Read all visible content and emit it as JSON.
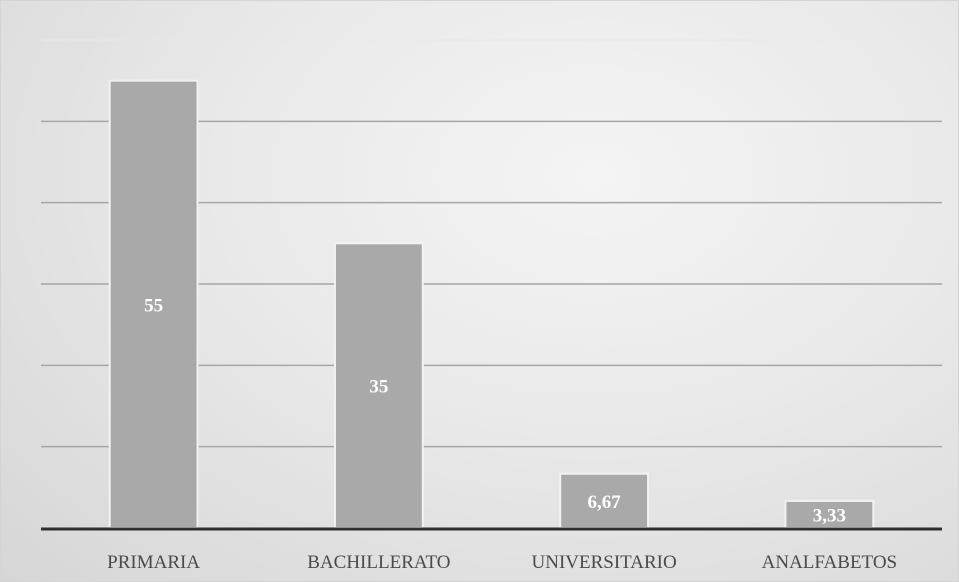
{
  "chart_data": {
    "type": "bar",
    "categories": [
      "PRIMARIA",
      "BACHILLERATO",
      "UNIVERSITARIO",
      "ANALFABETOS"
    ],
    "values": [
      55,
      35,
      6.67,
      3.33
    ],
    "data_labels": [
      "55",
      "35",
      "6,67",
      "3,33"
    ],
    "title": "",
    "xlabel": "",
    "ylabel": "",
    "ylim": [
      0,
      60
    ],
    "grid": true,
    "legend": "none",
    "colors": {
      "bar": "#a9a9a9",
      "bar_edge": "#f2f2f2",
      "grid": "#a6a6a6",
      "axis": "#2f2f2f",
      "label": "#ffffff",
      "category_text": "#4a4a4a"
    }
  }
}
